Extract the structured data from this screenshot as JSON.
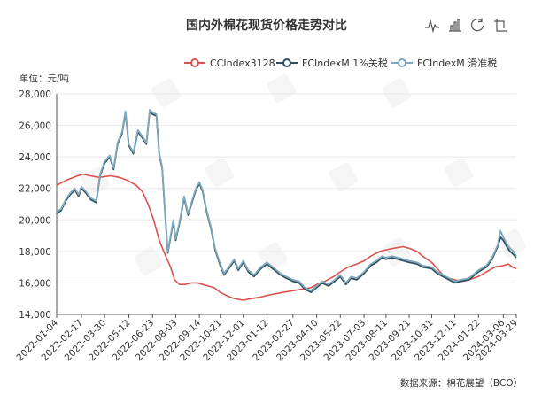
{
  "title": "国内外棉花现货价格走势对比",
  "unit_label": "单位：元/吨",
  "source": "数据来源：棉花展望（BCO）",
  "toolbar": {
    "icons": [
      "line-chart-icon",
      "bar-chart-icon",
      "restore-icon",
      "save-image-icon"
    ]
  },
  "colors": {
    "ccindex": "#d9534f",
    "fc1": "#2f4f5f",
    "fcslide": "#7fa9bd",
    "grid": "#e8e8e8",
    "axis": "#555555"
  },
  "chart_data": {
    "type": "line",
    "title": "国内外棉花现货价格走势对比",
    "ylabel": "单位：元/吨",
    "ylim": [
      14000,
      28000
    ],
    "yticks": [
      14000,
      16000,
      18000,
      20000,
      22000,
      24000,
      26000,
      28000
    ],
    "ytick_labels": [
      "14,000",
      "16,000",
      "18,000",
      "20,000",
      "22,000",
      "24,000",
      "26,000",
      "28,000"
    ],
    "xlim": [
      "2022-01-04",
      "2024-03-29"
    ],
    "xticks": [
      "2022-01-04",
      "2022-02-17",
      "2022-03-30",
      "2022-05-12",
      "2022-06-23",
      "2022-08-03",
      "2022-09-14",
      "2022-10-21",
      "2022-12-01",
      "2023-01-12",
      "2023-02-27",
      "2023-04-10",
      "2023-05-22",
      "2023-07-03",
      "2023-08-11",
      "2023-09-21",
      "2023-10-31",
      "2023-12-11",
      "2024-01-22",
      "2024-03-06",
      "2024-03-29"
    ],
    "legend_position": "top",
    "series": [
      {
        "name": "CCIndex3128",
        "color": "#d9534f",
        "points": [
          [
            "2022-01-04",
            22200
          ],
          [
            "2022-01-20",
            22500
          ],
          [
            "2022-02-10",
            22800
          ],
          [
            "2022-02-20",
            22900
          ],
          [
            "2022-03-05",
            22800
          ],
          [
            "2022-03-20",
            22700
          ],
          [
            "2022-04-10",
            22800
          ],
          [
            "2022-04-25",
            22700
          ],
          [
            "2022-05-10",
            22500
          ],
          [
            "2022-05-25",
            22200
          ],
          [
            "2022-06-05",
            21800
          ],
          [
            "2022-06-15",
            21000
          ],
          [
            "2022-06-25",
            20000
          ],
          [
            "2022-07-05",
            18700
          ],
          [
            "2022-07-15",
            17800
          ],
          [
            "2022-07-25",
            17000
          ],
          [
            "2022-08-01",
            16200
          ],
          [
            "2022-08-10",
            15900
          ],
          [
            "2022-08-20",
            15900
          ],
          [
            "2022-08-31",
            16000
          ],
          [
            "2022-09-10",
            16000
          ],
          [
            "2022-09-20",
            15900
          ],
          [
            "2022-09-30",
            15800
          ],
          [
            "2022-10-10",
            15700
          ],
          [
            "2022-10-21",
            15400
          ],
          [
            "2022-11-01",
            15200
          ],
          [
            "2022-11-15",
            15000
          ],
          [
            "2022-12-01",
            14900
          ],
          [
            "2022-12-15",
            15000
          ],
          [
            "2023-01-01",
            15100
          ],
          [
            "2023-01-12",
            15200
          ],
          [
            "2023-01-25",
            15300
          ],
          [
            "2023-02-10",
            15400
          ],
          [
            "2023-02-27",
            15500
          ],
          [
            "2023-03-15",
            15600
          ],
          [
            "2023-03-31",
            15700
          ],
          [
            "2023-04-10",
            15900
          ],
          [
            "2023-04-25",
            16100
          ],
          [
            "2023-05-10",
            16400
          ],
          [
            "2023-05-22",
            16700
          ],
          [
            "2023-06-05",
            17000
          ],
          [
            "2023-06-20",
            17200
          ],
          [
            "2023-07-03",
            17400
          ],
          [
            "2023-07-15",
            17700
          ],
          [
            "2023-07-31",
            18000
          ],
          [
            "2023-08-11",
            18100
          ],
          [
            "2023-08-25",
            18200
          ],
          [
            "2023-09-10",
            18300
          ],
          [
            "2023-09-21",
            18200
          ],
          [
            "2023-10-05",
            18000
          ],
          [
            "2023-10-15",
            17700
          ],
          [
            "2023-10-31",
            17300
          ],
          [
            "2023-11-10",
            16900
          ],
          [
            "2023-11-20",
            16500
          ],
          [
            "2023-12-01",
            16300
          ],
          [
            "2023-12-11",
            16200
          ],
          [
            "2023-12-25",
            16100
          ],
          [
            "2024-01-05",
            16200
          ],
          [
            "2024-01-22",
            16400
          ],
          [
            "2024-02-05",
            16700
          ],
          [
            "2024-02-20",
            17000
          ],
          [
            "2024-03-06",
            17100
          ],
          [
            "2024-03-15",
            17200
          ],
          [
            "2024-03-22",
            17000
          ],
          [
            "2024-03-29",
            16900
          ]
        ]
      },
      {
        "name": "FCIndexM 1%关税",
        "color": "#2f4f5f",
        "points": [
          [
            "2022-01-04",
            20400
          ],
          [
            "2022-01-12",
            20600
          ],
          [
            "2022-01-20",
            21200
          ],
          [
            "2022-01-28",
            21600
          ],
          [
            "2022-02-05",
            21900
          ],
          [
            "2022-02-12",
            21500
          ],
          [
            "2022-02-17",
            22000
          ],
          [
            "2022-02-25",
            21700
          ],
          [
            "2022-03-05",
            21300
          ],
          [
            "2022-03-15",
            21100
          ],
          [
            "2022-03-22",
            22800
          ],
          [
            "2022-03-30",
            23600
          ],
          [
            "2022-04-08",
            24000
          ],
          [
            "2022-04-15",
            23200
          ],
          [
            "2022-04-22",
            24800
          ],
          [
            "2022-04-30",
            25500
          ],
          [
            "2022-05-06",
            26800
          ],
          [
            "2022-05-12",
            24700
          ],
          [
            "2022-05-20",
            24200
          ],
          [
            "2022-05-28",
            25600
          ],
          [
            "2022-06-05",
            25200
          ],
          [
            "2022-06-12",
            24800
          ],
          [
            "2022-06-18",
            26900
          ],
          [
            "2022-06-23",
            26700
          ],
          [
            "2022-06-30",
            26600
          ],
          [
            "2022-07-05",
            24100
          ],
          [
            "2022-07-10",
            23300
          ],
          [
            "2022-07-15",
            20500
          ],
          [
            "2022-07-20",
            17900
          ],
          [
            "2022-07-25",
            18900
          ],
          [
            "2022-07-30",
            19900
          ],
          [
            "2022-08-03",
            18700
          ],
          [
            "2022-08-10",
            19800
          ],
          [
            "2022-08-18",
            21400
          ],
          [
            "2022-08-25",
            20300
          ],
          [
            "2022-09-01",
            21100
          ],
          [
            "2022-09-08",
            21900
          ],
          [
            "2022-09-14",
            22300
          ],
          [
            "2022-09-20",
            21800
          ],
          [
            "2022-09-27",
            20500
          ],
          [
            "2022-10-05",
            19400
          ],
          [
            "2022-10-12",
            18100
          ],
          [
            "2022-10-21",
            17100
          ],
          [
            "2022-10-28",
            16500
          ],
          [
            "2022-11-05",
            16900
          ],
          [
            "2022-11-15",
            17400
          ],
          [
            "2022-11-22",
            16800
          ],
          [
            "2022-12-01",
            17300
          ],
          [
            "2022-12-10",
            16700
          ],
          [
            "2022-12-20",
            16400
          ],
          [
            "2023-01-01",
            16900
          ],
          [
            "2023-01-12",
            17200
          ],
          [
            "2023-01-22",
            16900
          ],
          [
            "2023-02-05",
            16500
          ],
          [
            "2023-02-15",
            16300
          ],
          [
            "2023-02-27",
            16100
          ],
          [
            "2023-03-10",
            16000
          ],
          [
            "2023-03-20",
            15600
          ],
          [
            "2023-03-31",
            15400
          ],
          [
            "2023-04-10",
            15700
          ],
          [
            "2023-04-20",
            16000
          ],
          [
            "2023-05-01",
            15800
          ],
          [
            "2023-05-12",
            16100
          ],
          [
            "2023-05-22",
            16400
          ],
          [
            "2023-06-01",
            15900
          ],
          [
            "2023-06-10",
            16300
          ],
          [
            "2023-06-20",
            16200
          ],
          [
            "2023-07-03",
            16600
          ],
          [
            "2023-07-15",
            17100
          ],
          [
            "2023-07-25",
            17300
          ],
          [
            "2023-08-04",
            17600
          ],
          [
            "2023-08-11",
            17500
          ],
          [
            "2023-08-22",
            17600
          ],
          [
            "2023-09-01",
            17500
          ],
          [
            "2023-09-11",
            17400
          ],
          [
            "2023-09-21",
            17300
          ],
          [
            "2023-10-05",
            17200
          ],
          [
            "2023-10-15",
            17000
          ],
          [
            "2023-10-31",
            16900
          ],
          [
            "2023-11-10",
            16600
          ],
          [
            "2023-11-20",
            16400
          ],
          [
            "2023-12-01",
            16200
          ],
          [
            "2023-12-11",
            16000
          ],
          [
            "2023-12-22",
            16100
          ],
          [
            "2024-01-05",
            16200
          ],
          [
            "2024-01-15",
            16500
          ],
          [
            "2024-01-22",
            16700
          ],
          [
            "2024-02-05",
            17000
          ],
          [
            "2024-02-15",
            17500
          ],
          [
            "2024-02-25",
            18300
          ],
          [
            "2024-03-01",
            18900
          ],
          [
            "2024-03-06",
            18700
          ],
          [
            "2024-03-12",
            18300
          ],
          [
            "2024-03-18",
            18000
          ],
          [
            "2024-03-24",
            17800
          ],
          [
            "2024-03-29",
            17600
          ]
        ]
      },
      {
        "name": "FCIndexM 滑准税",
        "color": "#7fa9bd",
        "points": [
          [
            "2022-01-04",
            20500
          ],
          [
            "2022-01-12",
            20700
          ],
          [
            "2022-01-20",
            21300
          ],
          [
            "2022-01-28",
            21700
          ],
          [
            "2022-02-05",
            22000
          ],
          [
            "2022-02-12",
            21600
          ],
          [
            "2022-02-17",
            22100
          ],
          [
            "2022-02-25",
            21800
          ],
          [
            "2022-03-05",
            21400
          ],
          [
            "2022-03-15",
            21200
          ],
          [
            "2022-03-22",
            22900
          ],
          [
            "2022-03-30",
            23700
          ],
          [
            "2022-04-08",
            24100
          ],
          [
            "2022-04-15",
            23300
          ],
          [
            "2022-04-22",
            24900
          ],
          [
            "2022-04-30",
            25600
          ],
          [
            "2022-05-06",
            26900
          ],
          [
            "2022-05-12",
            24800
          ],
          [
            "2022-05-20",
            24300
          ],
          [
            "2022-05-28",
            25700
          ],
          [
            "2022-06-05",
            25300
          ],
          [
            "2022-06-12",
            24900
          ],
          [
            "2022-06-18",
            27000
          ],
          [
            "2022-06-23",
            26800
          ],
          [
            "2022-06-30",
            26700
          ],
          [
            "2022-07-05",
            24200
          ],
          [
            "2022-07-10",
            23400
          ],
          [
            "2022-07-15",
            20600
          ],
          [
            "2022-07-20",
            18000
          ],
          [
            "2022-07-25",
            19000
          ],
          [
            "2022-07-30",
            20000
          ],
          [
            "2022-08-03",
            18800
          ],
          [
            "2022-08-10",
            19900
          ],
          [
            "2022-08-18",
            21500
          ],
          [
            "2022-08-25",
            20400
          ],
          [
            "2022-09-01",
            21200
          ],
          [
            "2022-09-08",
            22000
          ],
          [
            "2022-09-14",
            22400
          ],
          [
            "2022-09-20",
            21900
          ],
          [
            "2022-09-27",
            20600
          ],
          [
            "2022-10-05",
            19500
          ],
          [
            "2022-10-12",
            18200
          ],
          [
            "2022-10-21",
            17200
          ],
          [
            "2022-10-28",
            16600
          ],
          [
            "2022-11-05",
            17000
          ],
          [
            "2022-11-15",
            17500
          ],
          [
            "2022-11-22",
            16900
          ],
          [
            "2022-12-01",
            17400
          ],
          [
            "2022-12-10",
            16800
          ],
          [
            "2022-12-20",
            16500
          ],
          [
            "2023-01-01",
            17000
          ],
          [
            "2023-01-12",
            17300
          ],
          [
            "2023-01-22",
            17000
          ],
          [
            "2023-02-05",
            16600
          ],
          [
            "2023-02-15",
            16400
          ],
          [
            "2023-02-27",
            16200
          ],
          [
            "2023-03-10",
            16100
          ],
          [
            "2023-03-20",
            15700
          ],
          [
            "2023-03-31",
            15500
          ],
          [
            "2023-04-10",
            15800
          ],
          [
            "2023-04-20",
            16100
          ],
          [
            "2023-05-01",
            15900
          ],
          [
            "2023-05-12",
            16200
          ],
          [
            "2023-05-22",
            16500
          ],
          [
            "2023-06-01",
            16000
          ],
          [
            "2023-06-10",
            16400
          ],
          [
            "2023-06-20",
            16300
          ],
          [
            "2023-07-03",
            16700
          ],
          [
            "2023-07-15",
            17200
          ],
          [
            "2023-07-25",
            17400
          ],
          [
            "2023-08-04",
            17700
          ],
          [
            "2023-08-11",
            17600
          ],
          [
            "2023-08-22",
            17700
          ],
          [
            "2023-09-01",
            17600
          ],
          [
            "2023-09-11",
            17500
          ],
          [
            "2023-09-21",
            17400
          ],
          [
            "2023-10-05",
            17300
          ],
          [
            "2023-10-15",
            17100
          ],
          [
            "2023-10-31",
            17000
          ],
          [
            "2023-11-10",
            16700
          ],
          [
            "2023-11-20",
            16500
          ],
          [
            "2023-12-01",
            16300
          ],
          [
            "2023-12-11",
            16100
          ],
          [
            "2023-12-22",
            16200
          ],
          [
            "2024-01-05",
            16300
          ],
          [
            "2024-01-15",
            16600
          ],
          [
            "2024-01-22",
            16800
          ],
          [
            "2024-02-05",
            17100
          ],
          [
            "2024-02-15",
            17600
          ],
          [
            "2024-02-25",
            18400
          ],
          [
            "2024-03-01",
            19300
          ],
          [
            "2024-03-06",
            18900
          ],
          [
            "2024-03-12",
            18500
          ],
          [
            "2024-03-18",
            18200
          ],
          [
            "2024-03-24",
            18000
          ],
          [
            "2024-03-29",
            17700
          ]
        ]
      }
    ]
  }
}
